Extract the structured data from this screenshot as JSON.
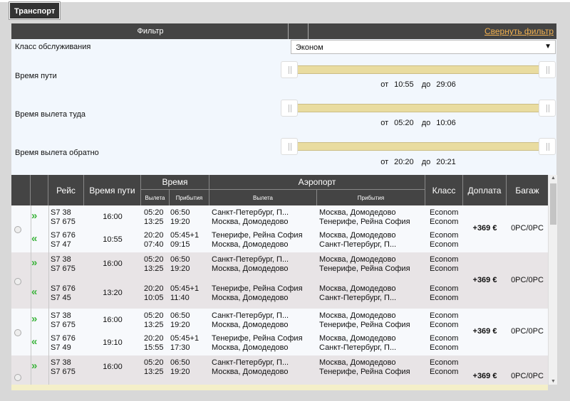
{
  "tab": {
    "label": "Транспорт"
  },
  "filter": {
    "title": "Фильтр",
    "collapse_label": "Свернуть фильтр",
    "class_label": "Класс обслуживания",
    "class_value": "Эконом",
    "travel_time": {
      "label": "Время пути",
      "from_word": "от",
      "to_word": "до",
      "from": "10:55",
      "to": "29:06"
    },
    "depart_out": {
      "label": "Время вылета туда",
      "from_word": "от",
      "to_word": "до",
      "from": "05:20",
      "to": "10:06"
    },
    "depart_back": {
      "label": "Время вылета обратно",
      "from_word": "от",
      "to_word": "до",
      "from": "20:20",
      "to": "20:21"
    }
  },
  "table": {
    "headers": {
      "flight": "Рейс",
      "duration": "Время пути",
      "time": "Время",
      "time_dep": "Вылета",
      "time_arr": "Прибытия",
      "airport": "Аэропорт",
      "airport_dep": "Вылета",
      "airport_arr": "Прибытия",
      "class": "Класс",
      "extra": "Доплата",
      "baggage": "Багаж"
    },
    "groups": [
      {
        "extra": "+369 €",
        "baggage": "0PC/0PC",
        "out": {
          "flights": [
            "S7 38",
            "S7 675"
          ],
          "duration": "16:00",
          "dep_times": [
            "05:20",
            "13:25"
          ],
          "arr_times": [
            "06:50",
            "19:20"
          ],
          "dep_airports": [
            "Санкт-Петербург, П...",
            "Москва, Домодедово"
          ],
          "arr_airports": [
            "Москва, Домодедово",
            "Тенерифе, Рейна София"
          ],
          "classes": [
            "Econom",
            "Econom"
          ]
        },
        "back": {
          "flights": [
            "S7 676",
            "S7 47"
          ],
          "duration": "10:55",
          "dep_times": [
            "20:20",
            "07:40"
          ],
          "arr_times": [
            "05:45+1",
            "09:15"
          ],
          "dep_airports": [
            "Тенерифе, Рейна София",
            "Москва, Домодедово"
          ],
          "arr_airports": [
            "Москва, Домодедово",
            "Санкт-Петербург, П..."
          ],
          "classes": [
            "Econom",
            "Econom"
          ]
        }
      },
      {
        "extra": "+369 €",
        "baggage": "0PC/0PC",
        "out": {
          "flights": [
            "S7 38",
            "S7 675"
          ],
          "duration": "16:00",
          "dep_times": [
            "05:20",
            "13:25"
          ],
          "arr_times": [
            "06:50",
            "19:20"
          ],
          "dep_airports": [
            "Санкт-Петербург, П...",
            "Москва, Домодедово"
          ],
          "arr_airports": [
            "Москва, Домодедово",
            "Тенерифе, Рейна София"
          ],
          "classes": [
            "Econom",
            "Econom"
          ]
        },
        "back": {
          "flights": [
            "S7 676",
            "S7 45"
          ],
          "duration": "13:20",
          "dep_times": [
            "20:20",
            "10:05"
          ],
          "arr_times": [
            "05:45+1",
            "11:40"
          ],
          "dep_airports": [
            "Тенерифе, Рейна София",
            "Москва, Домодедово"
          ],
          "arr_airports": [
            "Москва, Домодедово",
            "Санкт-Петербург, П..."
          ],
          "classes": [
            "Econom",
            "Econom"
          ]
        }
      },
      {
        "extra": "+369 €",
        "baggage": "0PC/0PC",
        "out": {
          "flights": [
            "S7 38",
            "S7 675"
          ],
          "duration": "16:00",
          "dep_times": [
            "05:20",
            "13:25"
          ],
          "arr_times": [
            "06:50",
            "19:20"
          ],
          "dep_airports": [
            "Санкт-Петербург, П...",
            "Москва, Домодедово"
          ],
          "arr_airports": [
            "Москва, Домодедово",
            "Тенерифе, Рейна София"
          ],
          "classes": [
            "Econom",
            "Econom"
          ]
        },
        "back": {
          "flights": [
            "S7 676",
            "S7 49"
          ],
          "duration": "19:10",
          "dep_times": [
            "20:20",
            "15:55"
          ],
          "arr_times": [
            "05:45+1",
            "17:30"
          ],
          "dep_airports": [
            "Тенерифе, Рейна София",
            "Москва, Домодедово"
          ],
          "arr_airports": [
            "Москва, Домодедово",
            "Санкт-Петербург, П..."
          ],
          "classes": [
            "Econom",
            "Econom"
          ]
        }
      },
      {
        "extra": "+369 €",
        "baggage": "0PC/0PC",
        "out": {
          "flights": [
            "S7 38",
            "S7 675"
          ],
          "duration": "16:00",
          "dep_times": [
            "05:20",
            "13:25"
          ],
          "arr_times": [
            "06:50",
            "19:20"
          ],
          "dep_airports": [
            "Санкт-Петербург, П...",
            "Москва, Домодедово"
          ],
          "arr_airports": [
            "Москва, Домодедово",
            "Тенерифе, Рейна София"
          ],
          "classes": [
            "Econom",
            "Econom"
          ]
        }
      }
    ]
  },
  "colors": {
    "header_bg": "#444444",
    "slider_track": "#e9dca0",
    "accent_link": "#f0b050",
    "arrow_green": "#3cb43c"
  }
}
